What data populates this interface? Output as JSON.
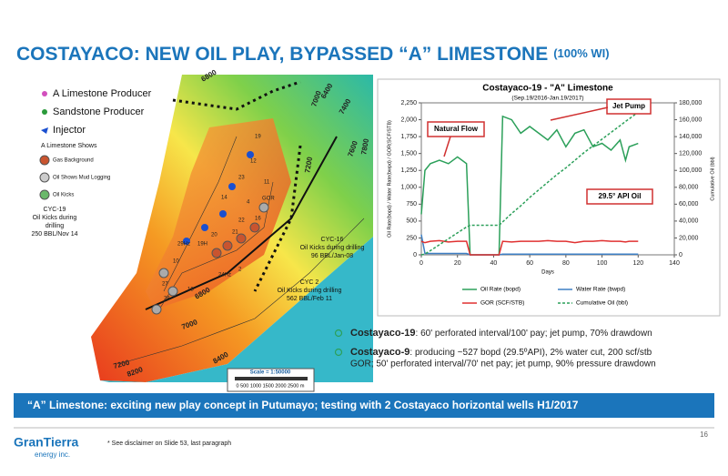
{
  "header": {
    "title": "COSTAYACO: NEW OIL PLAY, BYPASSED “A” LIMESTONE",
    "title_note": "(100% WI)"
  },
  "map": {
    "legend": [
      "A Limestone Producer",
      "Sandstone Producer",
      "Injector"
    ],
    "shows_title": "A Limestone Shows",
    "shows": [
      "Gas Background",
      "Oil Shows Mud Logging",
      "Oil Kicks"
    ],
    "callouts": [
      {
        "lines": [
          "CYC-19",
          "Oil Kicks during",
          "drilling",
          "250 BBL/Nov 14"
        ]
      },
      {
        "lines": [
          "CYC-16",
          "Oil Kicks during drilling",
          "96 BBL/Jan-08"
        ]
      },
      {
        "lines": [
          "CYC 2",
          "Oil Kicks during drilling",
          "562 BBL/Feb 11"
        ]
      }
    ],
    "contours": [
      "6800",
      "7000",
      "7200",
      "7400",
      "7600",
      "7800",
      "6800",
      "7000",
      "7200",
      "8200",
      "8400",
      "6400"
    ],
    "wells": [
      "19",
      "12",
      "23",
      "11",
      "14",
      "4",
      "GOR",
      "22",
      "16",
      "21",
      "20",
      "19H",
      "29Hz",
      "10",
      "18",
      "27",
      "28",
      "2",
      "24Hz"
    ],
    "scale": "Scale = 1:50000",
    "scale_ticks": "0    500  1000  1500  2000  2500 m"
  },
  "chart_data": {
    "type": "line",
    "title": "Costayaco-19 - \"A\" Limestone",
    "subtitle": "(Sep.19/2016-Jan.19/2017)",
    "x_label": "Days",
    "y_label": "Oil Rate(bopd) / Water Rate(bwpd) / GOR(SCF/STB)",
    "y2_label": "Cumulative Oil (bbl)",
    "annotations": [
      "Natural Flow",
      "Jet Pump",
      "29.5° API Oil"
    ],
    "x": [
      0,
      2,
      5,
      10,
      15,
      20,
      25,
      27,
      30,
      35,
      40,
      43,
      45,
      50,
      55,
      60,
      65,
      70,
      75,
      80,
      85,
      90,
      95,
      100,
      105,
      110,
      113,
      115,
      120
    ],
    "xlim": [
      0,
      140
    ],
    "xticks": [
      0,
      20,
      40,
      60,
      80,
      100,
      120,
      140
    ],
    "ylim": [
      0,
      2250
    ],
    "yticks": [
      0,
      250,
      500,
      750,
      {
        "value": 1000,
        "label": "1,000"
      },
      {
        "value": 1250,
        "label": "1,250"
      },
      {
        "value": 1500,
        "label": "1,500"
      },
      {
        "value": 1750,
        "label": "1,750"
      },
      {
        "value": 2000,
        "label": "2,000"
      },
      {
        "value": 2250,
        "label": "2,250"
      }
    ],
    "y2lim": [
      0,
      180000
    ],
    "y2ticks": [
      0,
      {
        "value": 20000,
        "label": "20,000"
      },
      {
        "value": 40000,
        "label": "40,000"
      },
      {
        "value": 60000,
        "label": "60,000"
      },
      {
        "value": 80000,
        "label": "80,000"
      },
      {
        "value": 100000,
        "label": "100,000"
      },
      {
        "value": 120000,
        "label": "120,000"
      },
      {
        "value": 140000,
        "label": "140,000"
      },
      {
        "value": 160000,
        "label": "160,000"
      },
      {
        "value": 180000,
        "label": "180,000"
      }
    ],
    "legend": "bottom",
    "series": [
      {
        "name": "Oil Rate (bopd)",
        "color": "#2ca05a",
        "dash": false,
        "values": [
          600,
          1250,
          1350,
          1400,
          1350,
          1450,
          1350,
          0,
          0,
          0,
          0,
          0,
          2050,
          2000,
          1800,
          1900,
          1800,
          1700,
          1850,
          1600,
          1800,
          1850,
          1600,
          1650,
          1550,
          1700,
          1400,
          1600,
          1650
        ]
      },
      {
        "name": "Water Rate (bwpd)",
        "color": "#3e7fc4",
        "dash": false,
        "values": [
          300,
          20,
          20,
          20,
          20,
          20,
          20,
          0,
          0,
          0,
          0,
          0,
          10,
          10,
          10,
          10,
          10,
          10,
          10,
          10,
          10,
          10,
          10,
          10,
          10,
          10,
          10,
          10,
          10
        ]
      },
      {
        "name": "GOR (SCF/STB)",
        "color": "#e03030",
        "dash": false,
        "values": [
          200,
          180,
          200,
          210,
          190,
          200,
          200,
          0,
          0,
          0,
          0,
          0,
          200,
          190,
          200,
          200,
          200,
          210,
          200,
          200,
          180,
          200,
          200,
          210,
          200,
          200,
          190,
          200,
          200
        ]
      },
      {
        "name": "Cumulative Oil (bbl)",
        "color": "#2ca05a",
        "dash": true,
        "axis": "y2",
        "values": [
          0,
          1000,
          5000,
          12000,
          19000,
          26000,
          33000,
          35000,
          35000,
          35000,
          35000,
          35000,
          39000,
          49000,
          58000,
          68000,
          77000,
          86000,
          95000,
          103000,
          112000,
          121000,
          129000,
          137000,
          145000,
          153000,
          158000,
          161000,
          169000
        ]
      }
    ]
  },
  "bullets": [
    {
      "name": "Costayaco-19",
      "lines": [
        ": 60' perforated interval/100' pay; jet pump, 70% drawdown"
      ]
    },
    {
      "name": "Costayaco-9",
      "lines": [
        ": producing ~527 bopd (29.5ºAPI), 2% water cut, 200 scf/stb",
        "GOR; 50' perforated interval/70' net pay; jet pump, 90% pressure drawdown"
      ]
    }
  ],
  "banner": "“A” Limestone: exciting new play concept in Putumayo; testing with 2 Costayaco horizontal wells H1/2017",
  "footer": {
    "logo": "GranTierra",
    "logo_sub": "energy inc.",
    "note": "* See disclaimer on Slide 53, last paragraph",
    "page": "16"
  }
}
